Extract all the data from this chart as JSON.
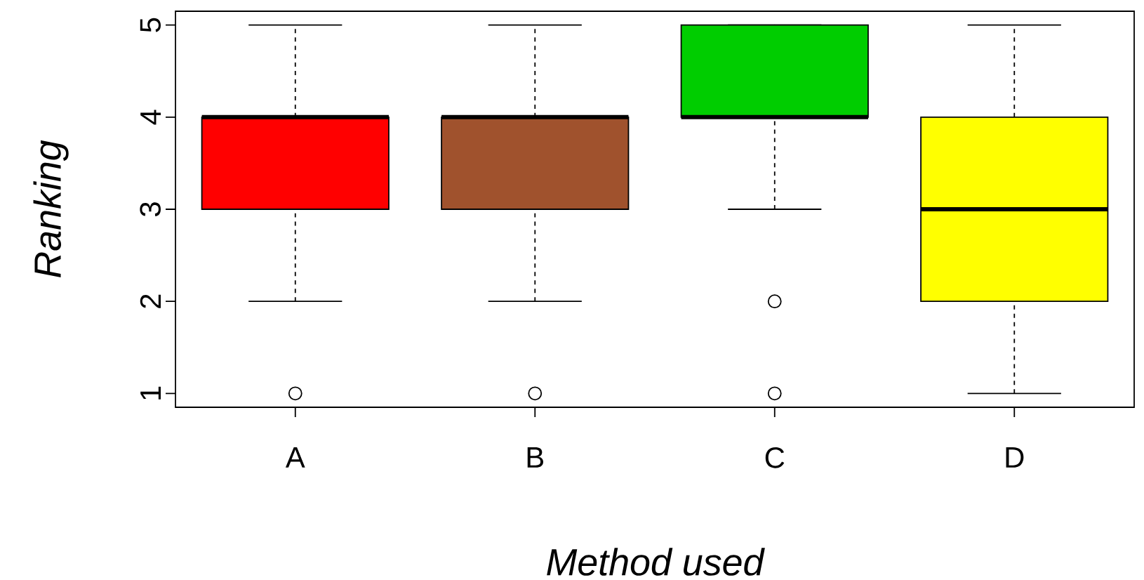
{
  "chart_data": {
    "type": "box",
    "xlabel": "Method used",
    "ylabel": "Ranking",
    "categories": [
      "A",
      "B",
      "C",
      "D"
    ],
    "colors": [
      "#ff0000",
      "#a0522d",
      "#00cd00",
      "#ffff00"
    ],
    "boxes": [
      {
        "low": 2,
        "q1": 3,
        "median": 4,
        "q3": 4,
        "high": 5,
        "outliers": [
          1
        ]
      },
      {
        "low": 2,
        "q1": 3,
        "median": 4,
        "q3": 4,
        "high": 5,
        "outliers": [
          1
        ]
      },
      {
        "low": 3,
        "q1": 4,
        "median": 4,
        "q3": 5,
        "high": 5,
        "outliers": [
          1,
          2
        ]
      },
      {
        "low": 1,
        "q1": 2,
        "median": 3,
        "q3": 4,
        "high": 5
      }
    ],
    "ylim": [
      0.85,
      5.15
    ],
    "yticks": [
      1,
      2,
      3,
      4,
      5
    ]
  }
}
